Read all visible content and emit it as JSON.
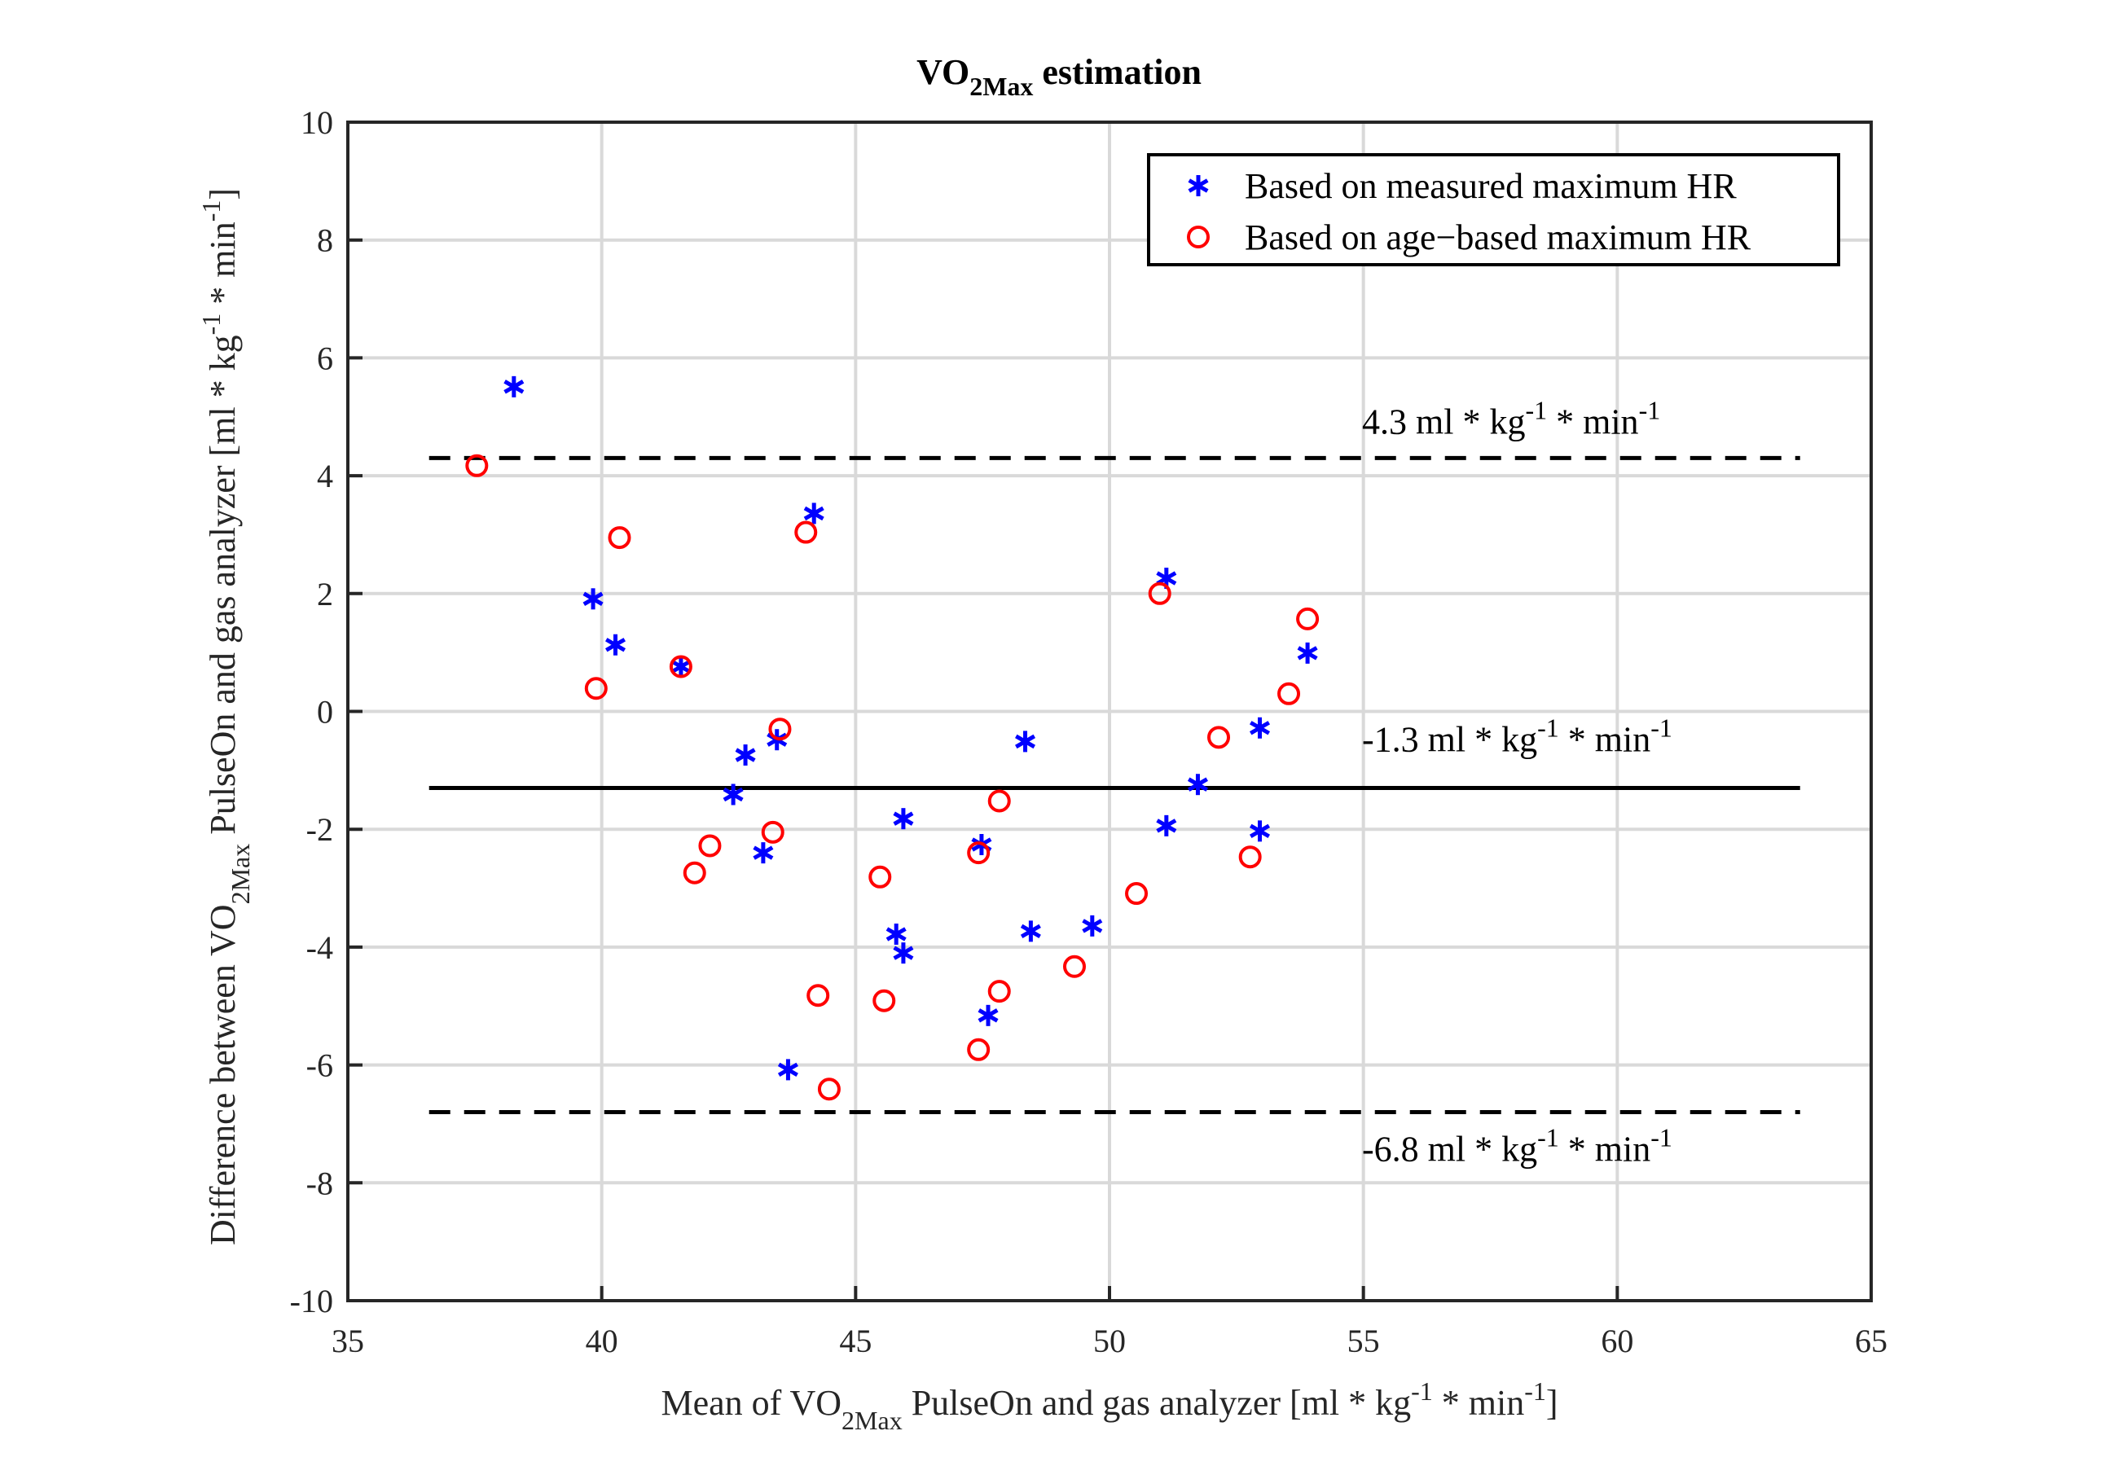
{
  "chart_data": {
    "type": "scatter",
    "title": {
      "main": "VO",
      "sub": "2Max",
      "rest": " estimation"
    },
    "xlabel": {
      "pre": "Mean of VO",
      "sub": "2Max",
      "mid": " PulseOn and gas analyzer [ml * kg",
      "sup1": "-1",
      "mid2": " * min",
      "sup2": "-1",
      "end": "]"
    },
    "ylabel": {
      "pre": "Difference between VO",
      "sub": "2Max",
      "mid": " PulseOn and gas analyzer [ml * kg",
      "sup1": "-1",
      "mid2": " * min",
      "sup2": "-1",
      "end": "]"
    },
    "xlim": [
      35,
      65
    ],
    "ylim": [
      -10,
      10
    ],
    "xticks": [
      "35",
      "40",
      "45",
      "50",
      "55",
      "60",
      "65"
    ],
    "yticks": [
      "-10",
      "-8",
      "-6",
      "-4",
      "-2",
      "0",
      "2",
      "4",
      "6",
      "8",
      "10"
    ],
    "grid": true,
    "legend": {
      "placement": "top-right",
      "entries": [
        "Based on measured maximum HR",
        "Based on age−based maximum HR"
      ]
    },
    "series": [
      {
        "name": "Based on measured maximum HR",
        "marker": "asterisk",
        "color": "#0000ff",
        "x": [
          38.27,
          39.83,
          40.27,
          41.56,
          42.83,
          42.59,
          43.45,
          43.18,
          44.18,
          43.67,
          45.94,
          45.8,
          45.94,
          47.48,
          47.61,
          48.34,
          48.45,
          49.66,
          51.12,
          51.12,
          51.74,
          52.96,
          52.96,
          53.9
        ],
        "y": [
          5.51,
          1.91,
          1.13,
          0.76,
          -0.74,
          -1.41,
          -0.48,
          -2.4,
          3.36,
          -6.08,
          -1.82,
          -3.78,
          -4.1,
          -2.26,
          -5.16,
          -0.51,
          -3.73,
          -3.64,
          2.26,
          -1.94,
          -1.24,
          -0.28,
          -2.03,
          0.99
        ]
      },
      {
        "name": "Based on age-based maximum HR",
        "marker": "circle",
        "color": "#ff0000",
        "x": [
          37.54,
          40.35,
          39.89,
          41.56,
          44.02,
          43.51,
          43.37,
          42.13,
          41.83,
          44.26,
          44.48,
          45.48,
          45.56,
          47.42,
          47.42,
          47.83,
          47.83,
          49.31,
          50.53,
          50.99,
          52.15,
          52.77,
          53.53,
          53.9
        ],
        "y": [
          4.17,
          2.95,
          0.39,
          0.76,
          3.04,
          -0.3,
          -2.05,
          -2.28,
          -2.74,
          -4.82,
          -6.41,
          -2.81,
          -4.91,
          -2.4,
          -5.74,
          -1.52,
          -4.75,
          -4.33,
          -3.09,
          2.0,
          -0.44,
          -2.47,
          0.3,
          1.57
        ]
      }
    ],
    "reference_lines": [
      {
        "name": "upper-limit",
        "y": 4.3,
        "style": "dashed",
        "x_range": [
          36.6,
          63.6
        ],
        "label": "4.3 ml * kg"
      },
      {
        "name": "mean",
        "y": -1.3,
        "style": "solid",
        "x_range": [
          36.6,
          63.6
        ],
        "label": "-1.3 ml * kg"
      },
      {
        "name": "lower-limit",
        "y": -6.8,
        "style": "dashed",
        "x_range": [
          36.6,
          63.6
        ],
        "label": "-6.8 ml * kg"
      }
    ],
    "annotation_unit": {
      "sup1": "-1",
      "mid": " * min",
      "sup2": "-1"
    }
  }
}
